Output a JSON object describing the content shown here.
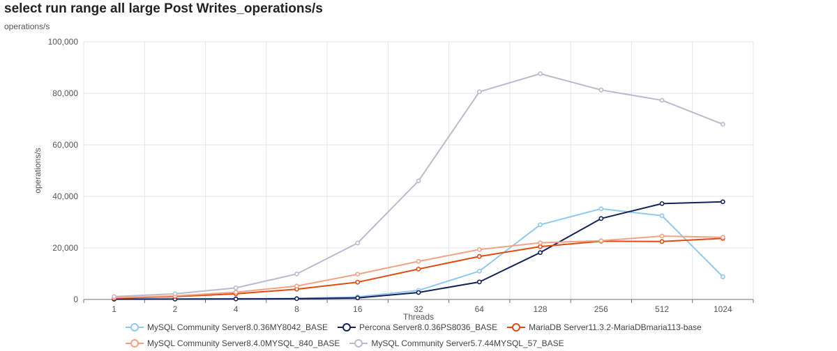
{
  "title": "select run range all large Post Writes_operations/s",
  "subtitle": "operations/s",
  "chart_data": {
    "type": "line",
    "title": "select run range all large Post Writes_operations/s",
    "xlabel": "Threads",
    "ylabel": "operations/s",
    "categories": [
      "1",
      "2",
      "4",
      "8",
      "16",
      "32",
      "64",
      "128",
      "256",
      "512",
      "1024"
    ],
    "ylim": [
      0,
      100000
    ],
    "yticks": [
      0,
      20000,
      40000,
      60000,
      80000,
      100000
    ],
    "ytick_labels": [
      "0",
      "20,000",
      "40,000",
      "60,000",
      "80,000",
      "100,000"
    ],
    "grid": true,
    "legend_position": "bottom",
    "series": [
      {
        "name": "MySQL Community Server8.0.36MY8042_BASE",
        "color": "#8ec9f0",
        "values": [
          200,
          250,
          300,
          400,
          1000,
          3500,
          11000,
          29000,
          35200,
          32500,
          8800
        ]
      },
      {
        "name": "Percona Server8.0.36PS8036_BASE",
        "color": "#16205a",
        "values": [
          100,
          150,
          200,
          300,
          600,
          2700,
          6800,
          18200,
          31400,
          37200,
          37900
        ]
      },
      {
        "name": "MariaDB Server11.3.2-MariaDBmaria113-base",
        "color": "#e04c0f",
        "values": [
          500,
          1100,
          2200,
          4000,
          6700,
          11800,
          16700,
          20500,
          22600,
          22500,
          23700
        ]
      },
      {
        "name": "MySQL Community Server8.4.0MYSQL_840_BASE",
        "color": "#f4a283",
        "values": [
          700,
          1400,
          2800,
          5200,
          9800,
          14800,
          19400,
          22000,
          22800,
          24600,
          24100
        ]
      },
      {
        "name": "MySQL Community Server5.7.44MYSQL_57_BASE",
        "color": "#b8bccc",
        "values": [
          1100,
          2200,
          4500,
          9900,
          21900,
          46000,
          80600,
          87600,
          81300,
          77300,
          68000
        ]
      }
    ]
  }
}
